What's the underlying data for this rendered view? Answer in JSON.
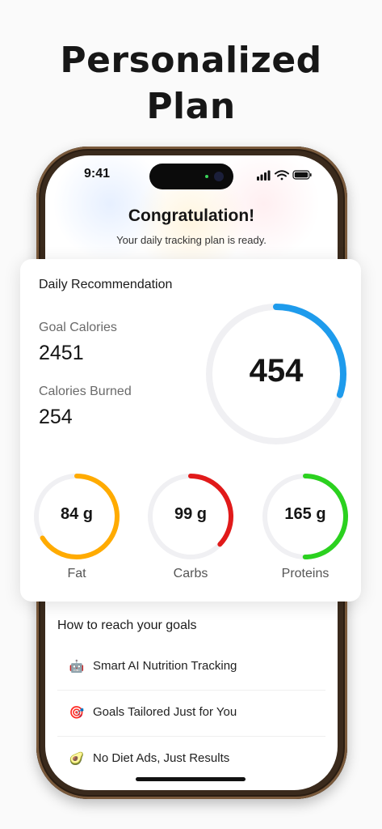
{
  "headline": {
    "line1": "Personalized",
    "line2": "Plan"
  },
  "status": {
    "time": "9:41"
  },
  "congrats": {
    "title": "Congratulation!",
    "subtitle": "Your daily tracking plan is ready."
  },
  "card": {
    "title": "Daily Recommendation",
    "goal_label": "Goal Calories",
    "goal_value": "2451",
    "burned_label": "Calories Burned",
    "burned_value": "254",
    "ring_value": "454",
    "ring_progress": 0.3,
    "ring_color": "#1e9bec",
    "macros": [
      {
        "value": "84 g",
        "label": "Fat",
        "progress": 0.66,
        "color": "#ffab00"
      },
      {
        "value": "99 g",
        "label": "Carbs",
        "progress": 0.37,
        "color": "#e11a1a"
      },
      {
        "value": "165 g",
        "label": "Proteins",
        "progress": 0.5,
        "color": "#2bd11f"
      }
    ]
  },
  "goals": {
    "title": "How to reach your goals",
    "items": [
      {
        "icon": "robot-icon",
        "emoji": "🤖",
        "label": "Smart AI Nutrition Tracking"
      },
      {
        "icon": "target-icon",
        "emoji": "🎯",
        "label": "Goals Tailored Just for You"
      },
      {
        "icon": "avocado-icon",
        "emoji": "🥑",
        "label": "No Diet Ads, Just Results"
      }
    ]
  }
}
